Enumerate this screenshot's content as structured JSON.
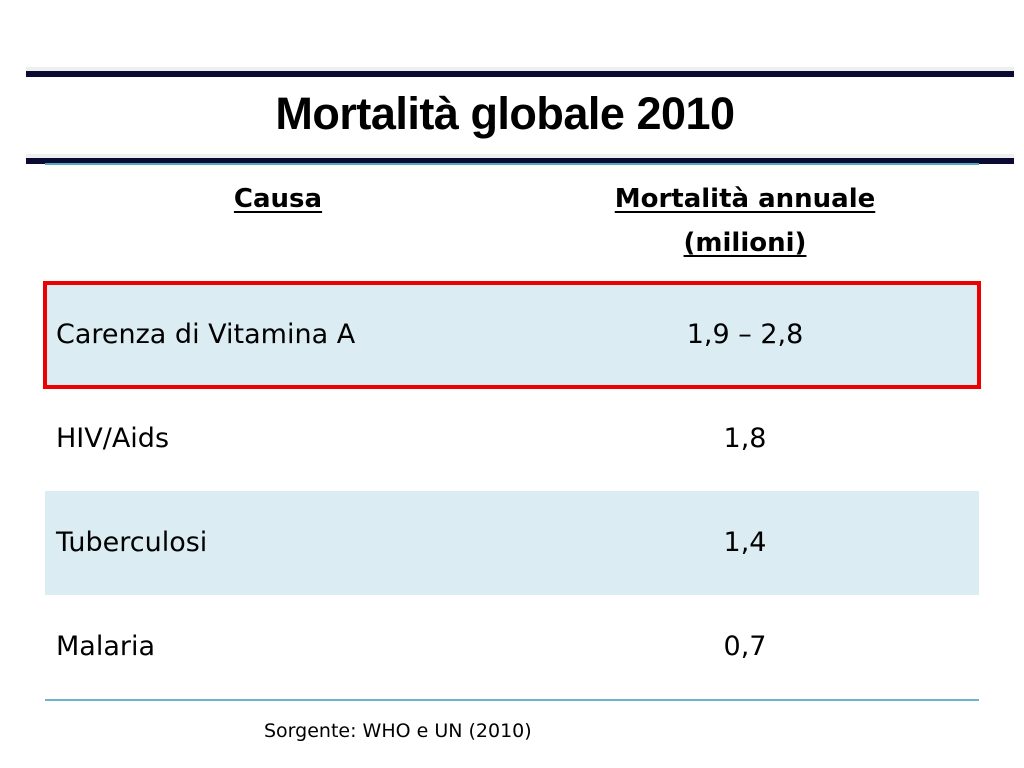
{
  "slide": {
    "title": "Mortalità globale 2010",
    "colors": {
      "header_bar": "#0a0a33",
      "row_shade": "#dbedf3",
      "highlight_border": "#ee0000",
      "table_rule": "#4bacc6"
    }
  },
  "table": {
    "headers": {
      "cause": "Causa",
      "value_line1": "Mortalità annuale",
      "value_line2": "(milioni)"
    },
    "rows": [
      {
        "cause": "Carenza di Vitamina A",
        "value": "1,9 – 2,8",
        "highlighted": true,
        "shaded": true
      },
      {
        "cause": "HIV/Aids",
        "value": "1,8",
        "highlighted": false,
        "shaded": false
      },
      {
        "cause": "Tuberculosi",
        "value": "1,4",
        "highlighted": false,
        "shaded": true
      },
      {
        "cause": "Malaria",
        "value": "0,7",
        "highlighted": false,
        "shaded": false
      }
    ]
  },
  "footer": {
    "source": "Sorgente: WHO e UN (2010)"
  }
}
